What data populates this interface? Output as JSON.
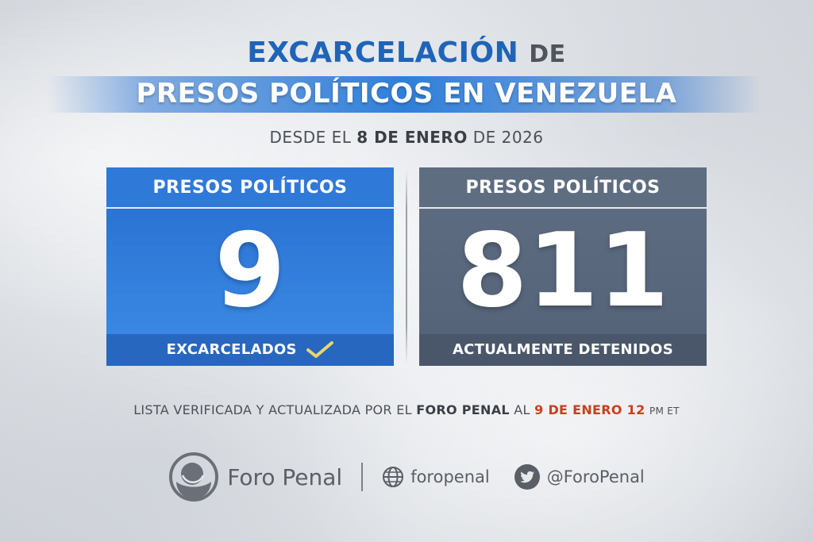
{
  "title": {
    "line1_highlight": "EXCARCELACIÓN",
    "line1_rest": "DE",
    "line2": "PRESOS POLÍTICOS EN VENEZUELA"
  },
  "subtitle": {
    "prefix": "DESDE EL",
    "date": "8 DE ENERO",
    "suffix": "DE 2026"
  },
  "cards": [
    {
      "header": "PRESOS POLÍTICOS",
      "value": "9",
      "footer": "EXCARCELADOS",
      "color": "#2c74d2"
    },
    {
      "header": "PRESOS POLÍTICOS",
      "value": "811",
      "footer": "ACTUALMENTE DETENIDOS",
      "color": "#5c6a7e"
    }
  ],
  "note": {
    "prefix": "LISTA VERIFICADA Y ACTUALIZADA POR EL",
    "org": "FORO PENAL",
    "mid": "AL",
    "datetime": "9 DE ENERO 12",
    "suffix": "PM ET"
  },
  "footer": {
    "brand": "Foro Penal",
    "website": "foropenal",
    "twitter": "@ForoPenal",
    "icons": [
      "foro-penal-logo-icon",
      "globe-icon",
      "twitter-icon"
    ]
  }
}
